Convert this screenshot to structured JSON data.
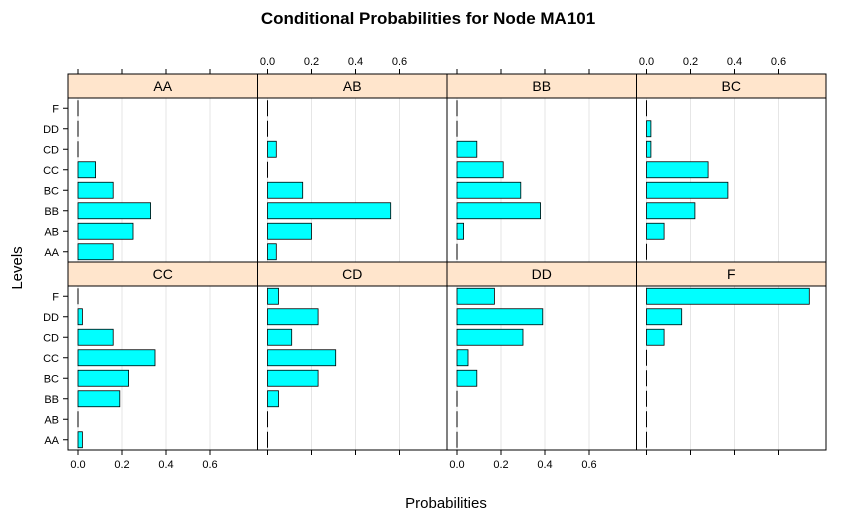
{
  "chart_data": {
    "type": "bar",
    "orientation": "horizontal",
    "title": "Conditional Probabilities for Node MA101",
    "xlabel": "Probabilities",
    "ylabel": "Levels",
    "xlim": [
      0,
      0.7
    ],
    "xticks": [
      0.0,
      0.2,
      0.4,
      0.6
    ],
    "xtick_labels": [
      "0.0",
      "0.2",
      "0.4",
      "0.6"
    ],
    "grid": true,
    "layout": {
      "columns": 4,
      "rows": 2
    },
    "categories": [
      "AA",
      "AB",
      "BB",
      "BC",
      "CC",
      "CD",
      "DD",
      "F"
    ],
    "panels": [
      {
        "name": "AA",
        "values": [
          0.16,
          0.25,
          0.33,
          0.16,
          0.08,
          0.0,
          0.0,
          0.0
        ]
      },
      {
        "name": "AB",
        "values": [
          0.04,
          0.2,
          0.56,
          0.16,
          0.0,
          0.04,
          0.0,
          0.0
        ]
      },
      {
        "name": "BB",
        "values": [
          0.0,
          0.03,
          0.38,
          0.29,
          0.21,
          0.09,
          0.0,
          0.0
        ]
      },
      {
        "name": "BC",
        "values": [
          0.0,
          0.08,
          0.22,
          0.37,
          0.28,
          0.02,
          0.02,
          0.0
        ]
      },
      {
        "name": "CC",
        "values": [
          0.02,
          0.0,
          0.19,
          0.23,
          0.35,
          0.16,
          0.02,
          0.0
        ]
      },
      {
        "name": "CD",
        "values": [
          0.0,
          0.0,
          0.05,
          0.23,
          0.31,
          0.11,
          0.23,
          0.05
        ]
      },
      {
        "name": "DD",
        "values": [
          0.0,
          0.0,
          0.0,
          0.09,
          0.05,
          0.3,
          0.39,
          0.17
        ]
      },
      {
        "name": "F",
        "values": [
          0.0,
          0.0,
          0.0,
          0.0,
          0.0,
          0.08,
          0.16,
          0.74
        ]
      }
    ]
  }
}
